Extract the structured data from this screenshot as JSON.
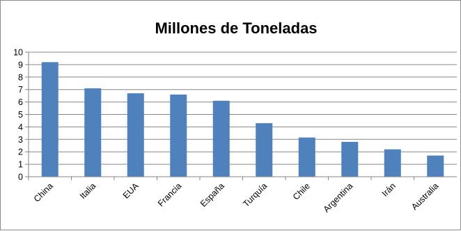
{
  "chart_data": {
    "type": "bar",
    "title": "Millones de Toneladas",
    "xlabel": "",
    "ylabel": "",
    "categories": [
      "China",
      "Italia",
      "EUA",
      "Francia",
      "España",
      "Turquía",
      "Chile",
      "Argentina",
      "Irán",
      "Australia"
    ],
    "values": [
      9.2,
      7.1,
      6.7,
      6.6,
      6.1,
      4.3,
      3.15,
      2.8,
      2.2,
      1.7
    ],
    "ylim": [
      0,
      10
    ],
    "yticks": [
      0,
      1,
      2,
      3,
      4,
      5,
      6,
      7,
      8,
      9,
      10
    ],
    "grid": true,
    "legend": "none",
    "bar_color": "#4f81bd"
  }
}
